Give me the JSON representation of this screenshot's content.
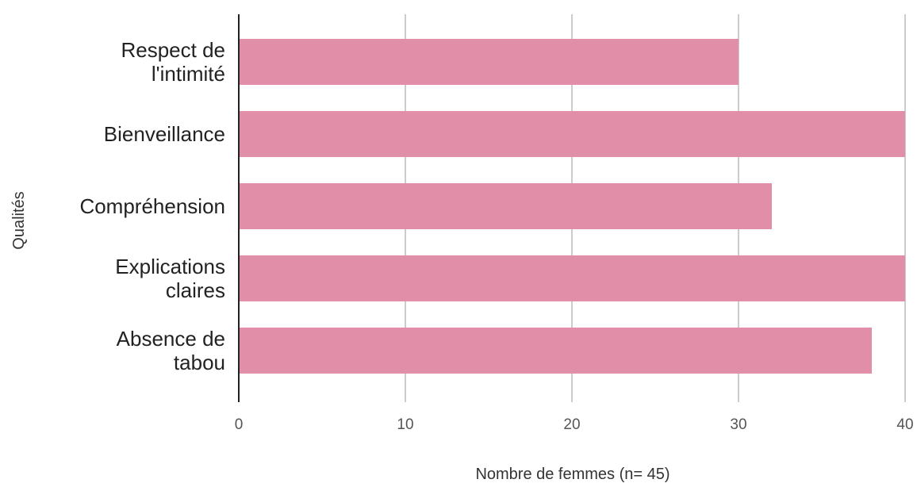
{
  "chart_data": {
    "type": "bar",
    "orientation": "horizontal",
    "categories": [
      [
        "Respect de",
        "l'intimité"
      ],
      [
        "Bienveillance"
      ],
      [
        "Compréhension"
      ],
      [
        "Explications",
        "claires"
      ],
      [
        "Absence de",
        "tabou"
      ]
    ],
    "values": [
      30,
      40,
      32,
      40,
      38
    ],
    "xlabel": "Nombre de femmes (n= 45)",
    "ylabel": "Qualités",
    "xlim": [
      0,
      40
    ],
    "xticks": [
      "0",
      "10",
      "20",
      "30",
      "40"
    ],
    "grid": true,
    "bar_color": "#e18fa8"
  }
}
